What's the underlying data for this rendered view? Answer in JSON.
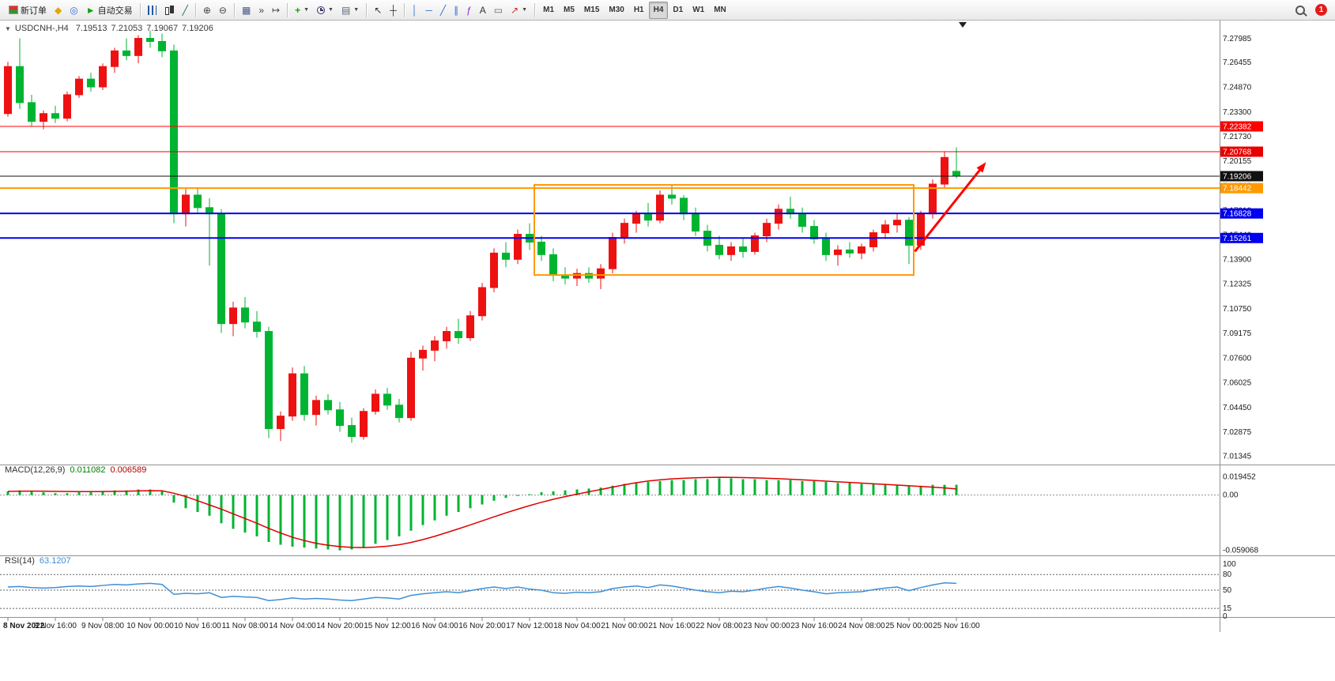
{
  "icons": {
    "chart_menu_arrow": "▼"
  },
  "toolbar": {
    "notification_count": "1",
    "groups": [
      {
        "name": "trade",
        "items": [
          {
            "name": "new-order-button",
            "icon": "new-order-icon",
            "css": "neworder-ic",
            "label": "新订单"
          },
          {
            "name": "new-chart-button",
            "icon": "new-chart-icon",
            "glyph": "◆",
            "color": "#e0a800"
          },
          {
            "name": "navigator-button",
            "icon": "navigator-icon",
            "glyph": "◎",
            "color": "#2f6fd0"
          },
          {
            "name": "autotrading-button",
            "icon": "autotrading-icon",
            "glyph": "►",
            "color": "#18a018",
            "label": "自动交易"
          }
        ]
      },
      {
        "name": "chart-type",
        "items": [
          {
            "name": "bar-chart-button",
            "icon": "bar-chart-icon",
            "css": "css-bars"
          },
          {
            "name": "candlestick-chart-button",
            "icon": "candlestick-chart-icon",
            "css": "css-candles"
          },
          {
            "name": "line-chart-button",
            "icon": "line-chart-icon",
            "glyph": "╱",
            "color": "#207040"
          }
        ]
      },
      {
        "name": "zoom",
        "items": [
          {
            "name": "zoom-in-button",
            "icon": "zoom-in-icon",
            "glyph": "⊕",
            "color": "#444444"
          },
          {
            "name": "zoom-out-button",
            "icon": "zoom-out-icon",
            "glyph": "⊖",
            "color": "#444444"
          }
        ]
      },
      {
        "name": "layout",
        "items": [
          {
            "name": "tile-windows-button",
            "icon": "tile-windows-icon",
            "glyph": "▦",
            "color": "#445588"
          },
          {
            "name": "auto-scroll-button",
            "icon": "auto-scroll-icon",
            "glyph": "»",
            "color": "#444444"
          },
          {
            "name": "chart-shift-button",
            "icon": "chart-shift-icon",
            "glyph": "↦",
            "color": "#444444"
          }
        ]
      },
      {
        "name": "tools",
        "items": [
          {
            "name": "indicators-button",
            "icon": "indicators-icon",
            "glyph": "+",
            "color": "#18a018",
            "bold": true,
            "dropdown": true
          },
          {
            "name": "periods-button",
            "icon": "clock-icon",
            "css": "css-clock",
            "dropdown": true
          },
          {
            "name": "templates-button",
            "icon": "template-icon",
            "glyph": "▤",
            "color": "#556677",
            "dropdown": true
          }
        ]
      },
      {
        "name": "pointer",
        "items": [
          {
            "name": "cursor-button",
            "icon": "cursor-icon",
            "glyph": "↖",
            "color": "#333333"
          },
          {
            "name": "crosshair-button",
            "icon": "crosshair-icon",
            "glyph": "┼",
            "color": "#333333"
          }
        ]
      },
      {
        "name": "objects",
        "items": [
          {
            "name": "vertical-line-button",
            "icon": "vertical-line-icon",
            "glyph": "│",
            "color": "#2f6fd0"
          },
          {
            "name": "horizontal-line-button",
            "icon": "horizontal-line-icon",
            "glyph": "─",
            "color": "#2f6fd0"
          },
          {
            "name": "trendline-button",
            "icon": "trendline-icon",
            "glyph": "╱",
            "color": "#2f6fd0"
          },
          {
            "name": "equidistant-channel-button",
            "icon": "channel-icon",
            "glyph": "∥",
            "color": "#2f6fd0"
          },
          {
            "name": "fibonacci-button",
            "icon": "fibonacci-icon",
            "glyph": "ƒ",
            "color": "#8a2be2"
          },
          {
            "name": "text-button",
            "icon": "text-icon",
            "glyph": "A",
            "color": "#333333"
          },
          {
            "name": "text-label-button",
            "icon": "text-label-icon",
            "glyph": "▭",
            "color": "#666666"
          },
          {
            "name": "arrows-button",
            "icon": "arrows-icon",
            "glyph": "↗",
            "color": "#c03030",
            "dropdown": true
          }
        ]
      },
      {
        "name": "timeframes",
        "items": [
          {
            "name": "tf-m1-button",
            "label": "M1",
            "tf": true
          },
          {
            "name": "tf-m5-button",
            "label": "M5",
            "tf": true
          },
          {
            "name": "tf-m15-button",
            "label": "M15",
            "tf": true
          },
          {
            "name": "tf-m30-button",
            "label": "M30",
            "tf": true
          },
          {
            "name": "tf-h1-button",
            "label": "H1",
            "tf": true
          },
          {
            "name": "tf-h4-button",
            "label": "H4",
            "tf": true,
            "active": true
          },
          {
            "name": "tf-d1-button",
            "label": "D1",
            "tf": true
          },
          {
            "name": "tf-w1-button",
            "label": "W1",
            "tf": true
          },
          {
            "name": "tf-mn-button",
            "label": "MN",
            "tf": true
          }
        ]
      }
    ]
  },
  "chart_data": {
    "type": "candlestick",
    "symbol_period": "USDCNH-,H4",
    "quote": {
      "open": "7.19513",
      "high": "7.21053",
      "low": "7.19067",
      "close": "7.19206"
    },
    "colors": {
      "up": "#ee1111",
      "down": "#00b432",
      "macd_hist": "#00b432",
      "macd_signal": "#e00000",
      "rsi_line": "#3e8fd6",
      "axis_text": "#1b1b1b"
    },
    "price_axis": [
      "7.27985",
      "7.26455",
      "7.24870",
      "7.23300",
      "7.21730",
      "7.20155",
      "7.18585",
      "7.17010",
      "7.15440",
      "7.13900",
      "7.12325",
      "7.10750",
      "7.09175",
      "7.07600",
      "7.06025",
      "7.04450",
      "7.02875",
      "7.01345"
    ],
    "levels": [
      {
        "price": 7.22382,
        "label": "7.22382",
        "color": "#ff0000",
        "width": 1
      },
      {
        "price": 7.20768,
        "label": "7.20768",
        "color": "#e80000",
        "width": 1
      },
      {
        "price": 7.18442,
        "label": "7.18442",
        "color": "#ff9900",
        "width": 2
      },
      {
        "price": 7.16828,
        "label": "7.16828",
        "color": "#0000ee",
        "width": 2
      },
      {
        "price": 7.15261,
        "label": "7.15261",
        "color": "#0000ee",
        "width": 2
      }
    ],
    "current_price": {
      "price": 7.19206,
      "label": "7.19206",
      "color": "#111111"
    },
    "box": {
      "from_index": 44.4,
      "to_index": 76.4,
      "top_price": 7.1865,
      "bottom_price": 7.129,
      "color": "#ff9900"
    },
    "arrow": {
      "from_index": 76.5,
      "from_price": 7.144,
      "to_index": 82.5,
      "to_price": 7.201,
      "color": "#ff0000"
    },
    "candles": [
      [
        7.232,
        7.265,
        7.23,
        7.262
      ],
      [
        7.262,
        7.28,
        7.235,
        7.239
      ],
      [
        7.239,
        7.244,
        7.224,
        7.227
      ],
      [
        7.227,
        7.234,
        7.222,
        7.232
      ],
      [
        7.232,
        7.237,
        7.226,
        7.229
      ],
      [
        7.229,
        7.246,
        7.227,
        7.244
      ],
      [
        7.244,
        7.256,
        7.242,
        7.254
      ],
      [
        7.254,
        7.258,
        7.246,
        7.249
      ],
      [
        7.249,
        7.264,
        7.247,
        7.262
      ],
      [
        7.262,
        7.274,
        7.258,
        7.272
      ],
      [
        7.272,
        7.28,
        7.266,
        7.269
      ],
      [
        7.269,
        7.282,
        7.264,
        7.28
      ],
      [
        7.28,
        7.285,
        7.274,
        7.278
      ],
      [
        7.278,
        7.283,
        7.268,
        7.272
      ],
      [
        7.272,
        7.276,
        7.162,
        7.168
      ],
      [
        7.168,
        7.184,
        7.16,
        7.18
      ],
      [
        7.18,
        7.185,
        7.168,
        7.172
      ],
      [
        7.172,
        7.178,
        7.135,
        7.168
      ],
      [
        7.168,
        7.171,
        7.092,
        7.098
      ],
      [
        7.098,
        7.112,
        7.09,
        7.108
      ],
      [
        7.108,
        7.115,
        7.095,
        7.099
      ],
      [
        7.099,
        7.106,
        7.089,
        7.093
      ],
      [
        7.093,
        7.096,
        7.025,
        7.031
      ],
      [
        7.031,
        7.042,
        7.023,
        7.039
      ],
      [
        7.039,
        7.07,
        7.036,
        7.066
      ],
      [
        7.066,
        7.071,
        7.036,
        7.04
      ],
      [
        7.04,
        7.052,
        7.033,
        7.049
      ],
      [
        7.049,
        7.053,
        7.04,
        7.043
      ],
      [
        7.043,
        7.048,
        7.029,
        7.033
      ],
      [
        7.033,
        7.038,
        7.022,
        7.026
      ],
      [
        7.026,
        7.044,
        7.024,
        7.042
      ],
      [
        7.042,
        7.056,
        7.04,
        7.053
      ],
      [
        7.053,
        7.057,
        7.043,
        7.046
      ],
      [
        7.046,
        7.05,
        7.035,
        7.038
      ],
      [
        7.038,
        7.08,
        7.036,
        7.076
      ],
      [
        7.076,
        7.084,
        7.068,
        7.081
      ],
      [
        7.081,
        7.09,
        7.074,
        7.087
      ],
      [
        7.087,
        7.096,
        7.082,
        7.093
      ],
      [
        7.093,
        7.101,
        7.085,
        7.089
      ],
      [
        7.089,
        7.106,
        7.087,
        7.103
      ],
      [
        7.103,
        7.124,
        7.1,
        7.121
      ],
      [
        7.121,
        7.146,
        7.118,
        7.143
      ],
      [
        7.143,
        7.15,
        7.134,
        7.139
      ],
      [
        7.139,
        7.158,
        7.136,
        7.155
      ],
      [
        7.155,
        7.162,
        7.145,
        7.15
      ],
      [
        7.15,
        7.154,
        7.138,
        7.142
      ],
      [
        7.142,
        7.146,
        7.125,
        7.129
      ],
      [
        7.129,
        7.134,
        7.123,
        7.127
      ],
      [
        7.127,
        7.133,
        7.122,
        7.13
      ],
      [
        7.13,
        7.134,
        7.124,
        7.127
      ],
      [
        7.127,
        7.136,
        7.12,
        7.133
      ],
      [
        7.133,
        7.156,
        7.13,
        7.153
      ],
      [
        7.153,
        7.165,
        7.149,
        7.162
      ],
      [
        7.162,
        7.17,
        7.156,
        7.168
      ],
      [
        7.168,
        7.175,
        7.16,
        7.164
      ],
      [
        7.164,
        7.183,
        7.162,
        7.18
      ],
      [
        7.18,
        7.186,
        7.174,
        7.178
      ],
      [
        7.178,
        7.18,
        7.164,
        7.168
      ],
      [
        7.168,
        7.172,
        7.154,
        7.157
      ],
      [
        7.157,
        7.161,
        7.144,
        7.148
      ],
      [
        7.148,
        7.154,
        7.139,
        7.142
      ],
      [
        7.142,
        7.15,
        7.138,
        7.147
      ],
      [
        7.147,
        7.153,
        7.14,
        7.144
      ],
      [
        7.144,
        7.156,
        7.142,
        7.154
      ],
      [
        7.154,
        7.165,
        7.15,
        7.162
      ],
      [
        7.162,
        7.174,
        7.158,
        7.171
      ],
      [
        7.171,
        7.179,
        7.165,
        7.168
      ],
      [
        7.168,
        7.172,
        7.156,
        7.16
      ],
      [
        7.16,
        7.164,
        7.149,
        7.152
      ],
      [
        7.152,
        7.156,
        7.138,
        7.142
      ],
      [
        7.142,
        7.148,
        7.135,
        7.145
      ],
      [
        7.145,
        7.15,
        7.14,
        7.143
      ],
      [
        7.143,
        7.149,
        7.139,
        7.147
      ],
      [
        7.147,
        7.158,
        7.144,
        7.156
      ],
      [
        7.156,
        7.164,
        7.152,
        7.161
      ],
      [
        7.161,
        7.168,
        7.156,
        7.164
      ],
      [
        7.164,
        7.166,
        7.136,
        7.148
      ],
      [
        7.148,
        7.17,
        7.145,
        7.168
      ],
      [
        7.168,
        7.19,
        7.165,
        7.187
      ],
      [
        7.187,
        7.208,
        7.184,
        7.204
      ],
      [
        7.19513,
        7.21053,
        7.19067,
        7.19206
      ]
    ],
    "indicators": {
      "macd": {
        "name": "MACD(12,26,9)",
        "value_main": "0.011082",
        "value_signal": "0.006589",
        "axis": [
          "0.019452",
          "0.00",
          "-0.059068"
        ],
        "hist": [
          0.004,
          0.005,
          0.004,
          0.003,
          0.002,
          0.002,
          0.003,
          0.003,
          0.004,
          0.005,
          0.005,
          0.006,
          0.006,
          0.005,
          -0.008,
          -0.014,
          -0.018,
          -0.022,
          -0.03,
          -0.036,
          -0.04,
          -0.044,
          -0.05,
          -0.053,
          -0.055,
          -0.056,
          -0.057,
          -0.058,
          -0.059,
          -0.058,
          -0.056,
          -0.052,
          -0.048,
          -0.044,
          -0.038,
          -0.032,
          -0.027,
          -0.022,
          -0.018,
          -0.014,
          -0.01,
          -0.006,
          -0.003,
          -0.001,
          0.001,
          0.003,
          0.004,
          0.005,
          0.006,
          0.007,
          0.008,
          0.01,
          0.012,
          0.013,
          0.014,
          0.015,
          0.016,
          0.016,
          0.017,
          0.017,
          0.018,
          0.018,
          0.017,
          0.017,
          0.016,
          0.016,
          0.016,
          0.015,
          0.015,
          0.014,
          0.013,
          0.013,
          0.012,
          0.012,
          0.011,
          0.011,
          0.01,
          0.01,
          0.011,
          0.011,
          0.011
        ],
        "signal": [
          0.004,
          0.0042,
          0.0043,
          0.0042,
          0.004,
          0.0038,
          0.0037,
          0.0037,
          0.0038,
          0.004,
          0.0042,
          0.0045,
          0.0047,
          0.0046,
          0.002,
          -0.0015,
          -0.006,
          -0.0105,
          -0.015,
          -0.02,
          -0.025,
          -0.03,
          -0.0355,
          -0.0405,
          -0.045,
          -0.0485,
          -0.0515,
          -0.0535,
          -0.055,
          -0.0558,
          -0.056,
          -0.0555,
          -0.0545,
          -0.053,
          -0.0505,
          -0.0475,
          -0.044,
          -0.04,
          -0.036,
          -0.0318,
          -0.0275,
          -0.0232,
          -0.019,
          -0.015,
          -0.0112,
          -0.0077,
          -0.0045,
          -0.0016,
          0.001,
          0.0035,
          0.006,
          0.0085,
          0.011,
          0.0132,
          0.015,
          0.0163,
          0.0173,
          0.018,
          0.0185,
          0.0188,
          0.019,
          0.0189,
          0.0187,
          0.0184,
          0.018,
          0.0175,
          0.0169,
          0.0163,
          0.0156,
          0.0149,
          0.0142,
          0.0135,
          0.0128,
          0.0121,
          0.0114,
          0.0107,
          0.01,
          0.0092,
          0.0085,
          0.0076,
          0.0066
        ]
      },
      "rsi": {
        "name": "RSI(14)",
        "value": "63.1207",
        "axis": [
          "100",
          "80",
          "50",
          "15",
          "0"
        ],
        "level_lines": [
          80,
          50,
          15
        ],
        "values": [
          56,
          57,
          55,
          54,
          55,
          57,
          58,
          57,
          59,
          61,
          60,
          62,
          63,
          61,
          42,
          44,
          43,
          45,
          36,
          38,
          37,
          36,
          30,
          32,
          35,
          33,
          34,
          33,
          31,
          30,
          33,
          36,
          35,
          33,
          40,
          43,
          45,
          47,
          45,
          49,
          53,
          56,
          53,
          56,
          52,
          50,
          45,
          44,
          46,
          45,
          47,
          53,
          56,
          58,
          55,
          60,
          58,
          54,
          50,
          47,
          45,
          48,
          47,
          50,
          54,
          57,
          54,
          50,
          47,
          43,
          45,
          46,
          47,
          51,
          54,
          56,
          49,
          55,
          60,
          64,
          63.1
        ]
      }
    },
    "time_axis": [
      "8 Nov 2022",
      "8 Nov 16:00",
      "9 Nov 08:00",
      "10 Nov 00:00",
      "10 Nov 16:00",
      "11 Nov 08:00",
      "14 Nov 04:00",
      "14 Nov 20:00",
      "15 Nov 12:00",
      "16 Nov 04:00",
      "16 Nov 20:00",
      "17 Nov 12:00",
      "18 Nov 04:00",
      "21 Nov 00:00",
      "21 Nov 16:00",
      "22 Nov 08:00",
      "23 Nov 00:00",
      "23 Nov 16:00",
      "24 Nov 08:00",
      "25 Nov 00:00",
      "25 Nov 16:00"
    ]
  }
}
